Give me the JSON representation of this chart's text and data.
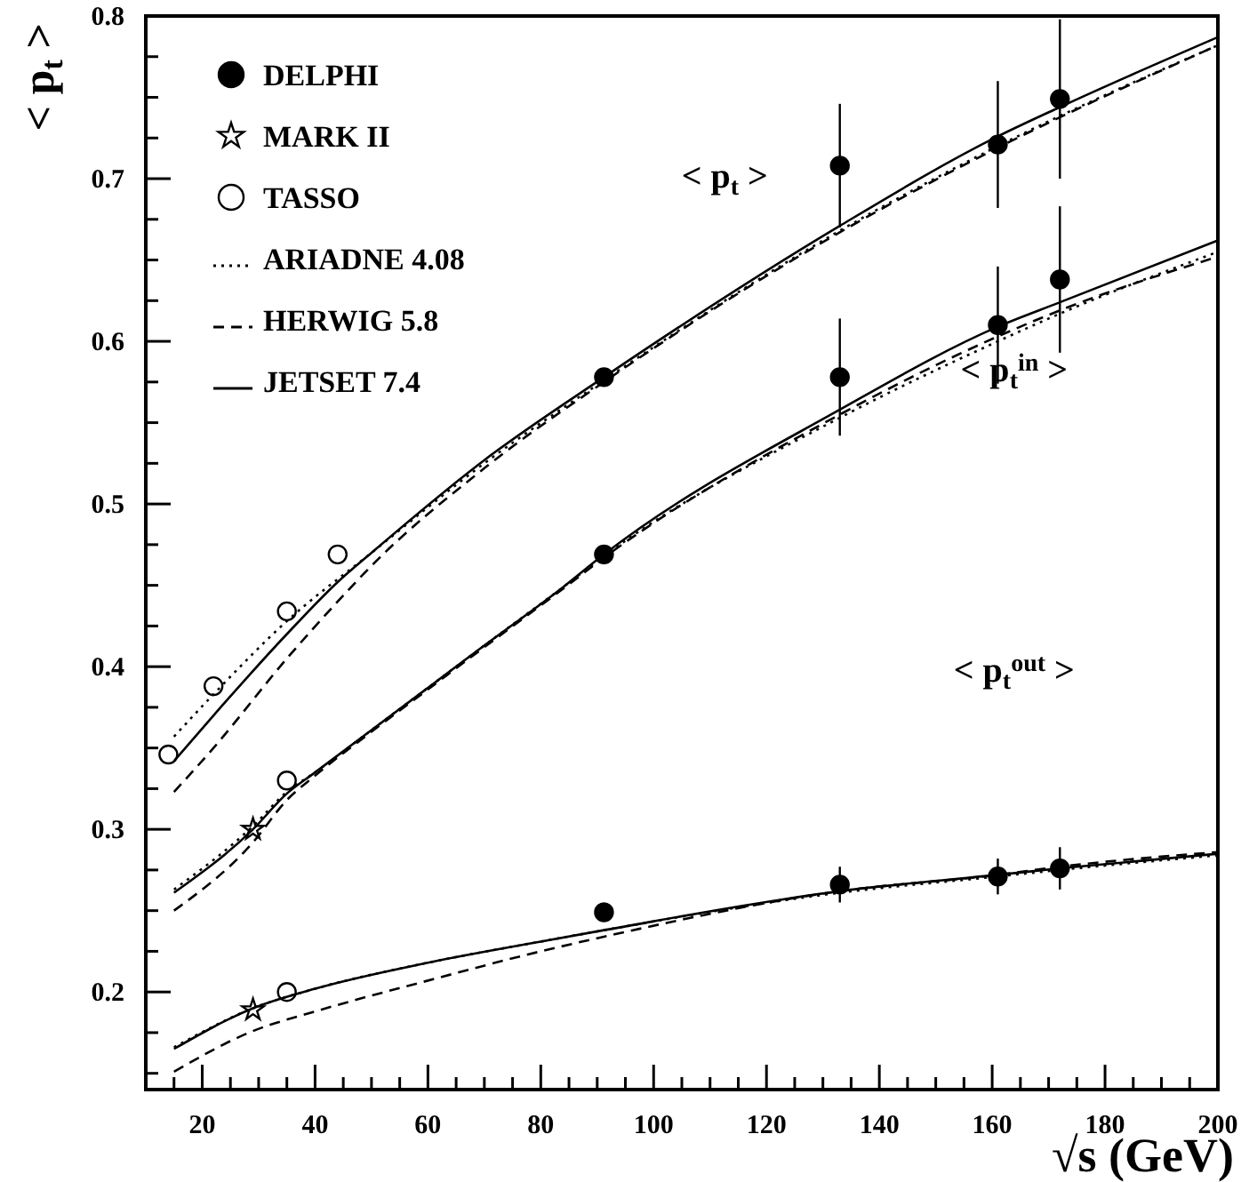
{
  "chart_data": {
    "type": "line",
    "xlabel": "√s (GeV)",
    "ylabel": "< p$_{t}$ >",
    "xlim": [
      10,
      200
    ],
    "ylim": [
      0.14,
      0.8
    ],
    "xticks": [
      {
        "value": 15,
        "label": null
      },
      20,
      {
        "value": 25,
        "label": null
      },
      {
        "value": 30,
        "label": null
      },
      {
        "value": 35,
        "label": null
      },
      40,
      {
        "value": 45,
        "label": null
      },
      {
        "value": 50,
        "label": null
      },
      {
        "value": 55,
        "label": null
      },
      60,
      {
        "value": 65,
        "label": null
      },
      {
        "value": 70,
        "label": null
      },
      {
        "value": 75,
        "label": null
      },
      80,
      {
        "value": 85,
        "label": null
      },
      {
        "value": 90,
        "label": null
      },
      {
        "value": 95,
        "label": null
      },
      100,
      {
        "value": 105,
        "label": null
      },
      {
        "value": 110,
        "label": null
      },
      {
        "value": 115,
        "label": null
      },
      120,
      {
        "value": 125,
        "label": null
      },
      {
        "value": 130,
        "label": null
      },
      {
        "value": 135,
        "label": null
      },
      140,
      {
        "value": 145,
        "label": null
      },
      {
        "value": 150,
        "label": null
      },
      {
        "value": 155,
        "label": null
      },
      160,
      {
        "value": 165,
        "label": null
      },
      {
        "value": 170,
        "label": null
      },
      {
        "value": 175,
        "label": null
      },
      180,
      {
        "value": 185,
        "label": null
      },
      {
        "value": 190,
        "label": null
      },
      {
        "value": 195,
        "label": null
      },
      200
    ],
    "yticks": [
      {
        "value": 0.15,
        "label": null
      },
      {
        "value": 0.175,
        "label": null
      },
      0.2,
      {
        "value": 0.225,
        "label": null
      },
      {
        "value": 0.25,
        "label": null
      },
      {
        "value": 0.275,
        "label": null
      },
      0.3,
      {
        "value": 0.325,
        "label": null
      },
      {
        "value": 0.35,
        "label": null
      },
      {
        "value": 0.375,
        "label": null
      },
      0.4,
      {
        "value": 0.425,
        "label": null
      },
      {
        "value": 0.45,
        "label": null
      },
      {
        "value": 0.475,
        "label": null
      },
      0.5,
      {
        "value": 0.525,
        "label": null
      },
      {
        "value": 0.55,
        "label": null
      },
      {
        "value": 0.575,
        "label": null
      },
      0.6,
      {
        "value": 0.625,
        "label": null
      },
      {
        "value": 0.65,
        "label": null
      },
      {
        "value": 0.675,
        "label": null
      },
      0.7,
      {
        "value": 0.725,
        "label": null
      },
      {
        "value": 0.75,
        "label": null
      },
      {
        "value": 0.775,
        "label": null
      },
      0.8
    ],
    "grid": false,
    "legend": "top left",
    "annotations": [
      "< p$_{t}$ >",
      "< p$_{t}$$^{in}$ >",
      "< p$_{t}$$^{out}$ >"
    ],
    "series": [
      {
        "name": "DELPHI",
        "type": "scatter",
        "marker": "circle",
        "color": "#000000",
        "x": [
          91.2,
          133,
          161,
          172,
          91.2,
          133,
          161,
          172,
          91.2,
          133,
          161,
          172
        ],
        "values": [
          0.578,
          0.708,
          0.721,
          0.749,
          0.469,
          0.578,
          0.61,
          0.638,
          0.249,
          0.266,
          0.271,
          0.276
        ],
        "errors": [
          null,
          0.038,
          0.039,
          0.049,
          null,
          0.036,
          0.036,
          0.045,
          null,
          0.011,
          0.011,
          0.013
        ]
      },
      {
        "name": "MARK II",
        "type": "scatter",
        "marker": "star",
        "color": "#000000",
        "x": [
          29,
          29
        ],
        "values": [
          0.3,
          0.189
        ]
      },
      {
        "name": "TASSO",
        "type": "scatter",
        "marker": "circle-open",
        "color": "#000000",
        "x": [
          14,
          22,
          35,
          44,
          35,
          35
        ],
        "values": [
          0.346,
          0.388,
          0.434,
          0.469,
          0.33,
          0.2
        ]
      },
      {
        "name": "ARIADNE 4.08",
        "line_style": "dotted",
        "color": "#000000",
        "x": [
          15,
          22,
          35,
          50,
          70,
          91.2,
          133,
          161,
          200
        ],
        "values": [
          0.357,
          0.383,
          0.428,
          0.47,
          0.525,
          0.576,
          0.668,
          0.72,
          0.782
        ]
      },
      {
        "name": "HERWIG 5.8",
        "line_style": "dashed",
        "color": "#000000",
        "x": [
          15,
          22,
          35,
          44,
          50,
          70,
          91.2,
          133,
          161,
          200
        ],
        "values": [
          0.323,
          0.35,
          0.405,
          0.44,
          0.462,
          0.522,
          0.575,
          0.667,
          0.719,
          0.782
        ]
      },
      {
        "name": "JETSET 7.4",
        "line_style": "solid",
        "color": "#000000",
        "x": [
          15,
          22,
          35,
          44,
          50,
          70,
          91.2,
          133,
          161,
          172,
          200
        ],
        "values": [
          0.342,
          0.37,
          0.42,
          0.452,
          0.47,
          0.527,
          0.578,
          0.671,
          0.726,
          0.744,
          0.787
        ]
      },
      {
        "line_style": "dotted",
        "color": "#000000",
        "x": [
          15,
          29,
          35,
          40,
          50,
          60,
          70,
          84,
          91.2,
          133,
          161,
          172,
          200
        ],
        "values": [
          0.263,
          0.302,
          0.323,
          0.335,
          0.361,
          0.387,
          0.413,
          0.449,
          0.468,
          0.553,
          0.6,
          0.617,
          0.655
        ]
      },
      {
        "line_style": "dashed",
        "color": "#000000",
        "x": [
          15,
          29,
          35,
          40,
          50,
          60,
          70,
          84,
          91.2,
          133,
          161,
          172,
          200
        ],
        "values": [
          0.25,
          0.292,
          0.318,
          0.333,
          0.36,
          0.386,
          0.412,
          0.448,
          0.467,
          0.555,
          0.603,
          0.619,
          0.652
        ]
      },
      {
        "line_style": "solid",
        "color": "#000000",
        "x": [
          15,
          29,
          35,
          40,
          50,
          60,
          70,
          84,
          91.2,
          133,
          161,
          172,
          200
        ],
        "values": [
          0.261,
          0.3,
          0.322,
          0.335,
          0.361,
          0.387,
          0.413,
          0.449,
          0.469,
          0.558,
          0.609,
          0.624,
          0.662
        ]
      },
      {
        "line_style": "dotted",
        "color": "#000000",
        "x": [
          15,
          29,
          40,
          60,
          80,
          91.2,
          133,
          161,
          172,
          200
        ],
        "values": [
          0.166,
          0.19,
          0.202,
          0.218,
          0.231,
          0.238,
          0.261,
          0.271,
          0.275,
          0.284
        ]
      },
      {
        "line_style": "dashed",
        "color": "#000000",
        "x": [
          15,
          29,
          40,
          60,
          80,
          91.2,
          133,
          161,
          172,
          200
        ],
        "values": [
          0.151,
          0.176,
          0.188,
          0.207,
          0.225,
          0.234,
          0.262,
          0.272,
          0.277,
          0.286
        ]
      },
      {
        "line_style": "solid",
        "color": "#000000",
        "x": [
          15,
          29,
          40,
          60,
          80,
          91.2,
          133,
          161,
          172,
          200
        ],
        "values": [
          0.165,
          0.19,
          0.202,
          0.218,
          0.231,
          0.238,
          0.262,
          0.272,
          0.276,
          0.285
        ]
      }
    ]
  }
}
